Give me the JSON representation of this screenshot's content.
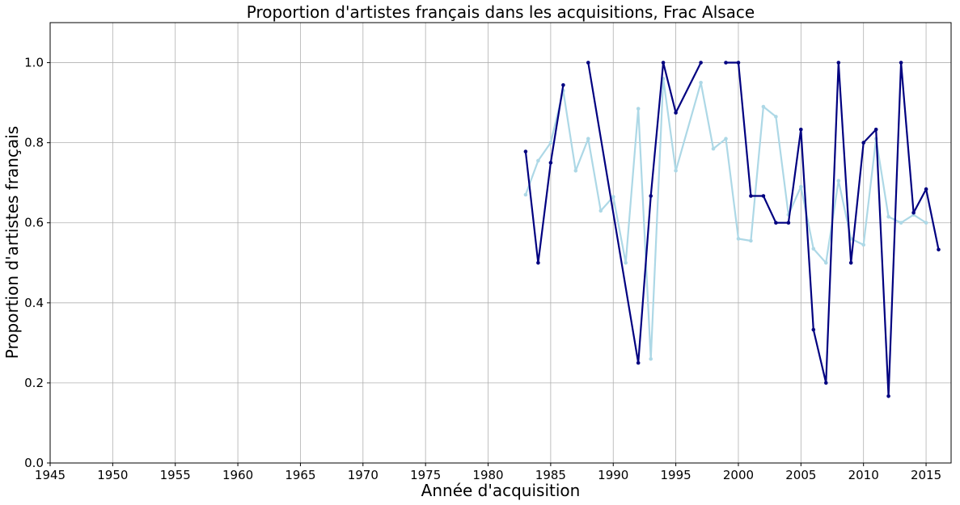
{
  "chart_data": {
    "type": "line",
    "title": "Proportion d'artistes français dans les acquisitions, Frac Alsace",
    "xlabel": "Année d'acquisition",
    "ylabel": "Proportion d'artistes français",
    "xlim": [
      1945,
      2017
    ],
    "ylim": [
      0.0,
      1.1
    ],
    "xticks": [
      1945,
      1950,
      1955,
      1960,
      1965,
      1970,
      1975,
      1980,
      1985,
      1990,
      1995,
      2000,
      2005,
      2010,
      2015
    ],
    "xtick_labels": [
      "1945",
      "1950",
      "1955",
      "1960",
      "1965",
      "1970",
      "1975",
      "1980",
      "1985",
      "1990",
      "1995",
      "2000",
      "2005",
      "2010",
      "2015"
    ],
    "yticks": [
      0.0,
      0.2,
      0.4,
      0.6,
      0.8,
      1.0
    ],
    "ytick_labels": [
      "0.0",
      "0.2",
      "0.4",
      "0.6",
      "0.8",
      "1.0"
    ],
    "grid": true,
    "series": [
      {
        "color": "#add8e6",
        "points": [
          [
            1983,
            0.67
          ],
          [
            1984,
            0.755
          ],
          [
            1985,
            0.8
          ],
          [
            1986,
            0.93
          ],
          [
            1987,
            0.73
          ],
          [
            1988,
            0.81
          ],
          [
            1989,
            0.63
          ],
          [
            1990,
            0.665
          ],
          [
            1991,
            0.5
          ],
          [
            1992,
            0.885
          ],
          [
            1993,
            0.26
          ],
          [
            1994,
            0.96
          ],
          [
            1995,
            0.73
          ],
          [
            1997,
            0.95
          ],
          [
            1998,
            0.785
          ],
          [
            1999,
            0.81
          ],
          [
            2000,
            0.56
          ],
          [
            2001,
            0.555
          ],
          [
            2002,
            0.89
          ],
          [
            2003,
            0.865
          ],
          [
            2004,
            0.62
          ],
          [
            2005,
            0.69
          ],
          [
            2006,
            0.535
          ],
          [
            2007,
            0.5
          ],
          [
            2008,
            0.705
          ],
          [
            2009,
            0.56
          ],
          [
            2010,
            0.545
          ],
          [
            2011,
            0.81
          ],
          [
            2012,
            0.615
          ],
          [
            2013,
            0.6
          ],
          [
            2014,
            0.62
          ],
          [
            2015,
            0.6
          ]
        ]
      },
      {
        "color": "#000080",
        "segments": [
          [
            [
              1983,
              0.778
            ],
            [
              1984,
              0.5
            ],
            [
              1985,
              0.75
            ],
            [
              1986,
              0.944
            ]
          ],
          [
            [
              1988,
              1.0
            ],
            [
              1992,
              0.25
            ],
            [
              1993,
              0.667
            ],
            [
              1994,
              1.0
            ],
            [
              1995,
              0.875
            ],
            [
              1997,
              1.0
            ]
          ],
          [
            [
              1999,
              1.0
            ],
            [
              2000,
              1.0
            ],
            [
              2001,
              0.667
            ],
            [
              2002,
              0.667
            ],
            [
              2003,
              0.6
            ],
            [
              2004,
              0.6
            ],
            [
              2005,
              0.833
            ],
            [
              2006,
              0.333
            ],
            [
              2007,
              0.2
            ],
            [
              2008,
              1.0
            ],
            [
              2009,
              0.5
            ],
            [
              2010,
              0.8
            ],
            [
              2011,
              0.833
            ],
            [
              2012,
              0.167
            ],
            [
              2013,
              1.0
            ],
            [
              2014,
              0.625
            ],
            [
              2015,
              0.684
            ],
            [
              2016,
              0.533
            ]
          ]
        ]
      }
    ]
  }
}
